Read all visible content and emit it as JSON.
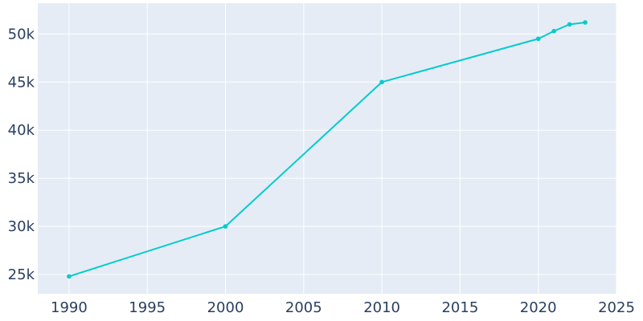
{
  "chart_data": {
    "type": "line",
    "title": "",
    "xlabel": "",
    "ylabel": "",
    "xlim": [
      1988,
      2025
    ],
    "ylim": [
      23000,
      53200
    ],
    "xticks": [
      1990,
      1995,
      2000,
      2005,
      2010,
      2015,
      2020,
      2025
    ],
    "yticks": [
      25000,
      30000,
      35000,
      40000,
      45000,
      50000
    ],
    "ytick_labels": [
      "25k",
      "30k",
      "35k",
      "40k",
      "45k",
      "50k"
    ],
    "grid": true,
    "legend": "none",
    "colors": {
      "line": "#00cccc",
      "plot_bg": "#e5ecf6",
      "grid": "#ffffff",
      "text": "#2a3f5f"
    },
    "series": [
      {
        "x": [
          1990,
          2000,
          2010,
          2020,
          2021,
          2022,
          2023
        ],
        "y": [
          24800,
          30000,
          45000,
          49500,
          50300,
          51000,
          51200
        ]
      }
    ]
  }
}
